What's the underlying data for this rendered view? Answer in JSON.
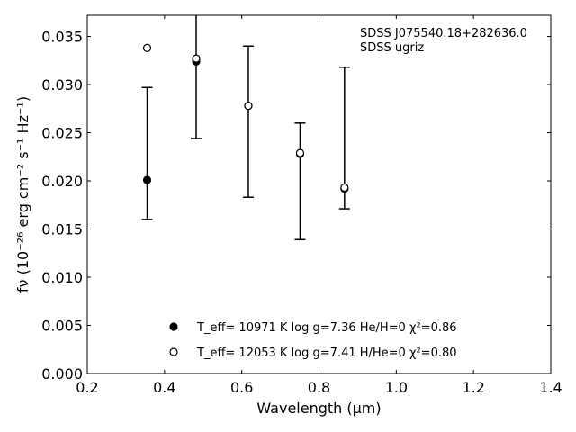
{
  "chart_data": {
    "type": "scatter",
    "xlabel": "Wavelength (μm)",
    "ylabel": "fν (10⁻²⁶ erg cm⁻² s⁻¹ Hz⁻¹)",
    "xlim": [
      0.2,
      1.4
    ],
    "ylim": [
      0.0,
      0.0372
    ],
    "x_ticks": [
      "0.2",
      "0.4",
      "0.6",
      "0.8",
      "1.0",
      "1.2",
      "1.4"
    ],
    "y_ticks": [
      "0.000",
      "0.005",
      "0.010",
      "0.015",
      "0.020",
      "0.025",
      "0.030",
      "0.035"
    ],
    "annotation": [
      "SDSS J075540.18+282636.0",
      "SDSS ugriz"
    ],
    "observed": {
      "x": [
        0.355,
        0.482,
        0.617,
        0.751,
        0.866
      ],
      "y": [
        0.0201,
        0.0325,
        0.0278,
        0.0229,
        0.0193
      ],
      "err_low": [
        0.016,
        0.0244,
        0.0183,
        0.0139,
        0.0171
      ],
      "err_high": [
        0.0297,
        0.0372,
        0.034,
        0.026,
        0.0318
      ]
    },
    "series": [
      {
        "marker": "filled",
        "legend": "T_eff= 10971 K  log g=7.36  He/H=0  χ²=0.86",
        "x": [
          0.355,
          0.482,
          0.617,
          0.751,
          0.866
        ],
        "y": [
          0.0201,
          0.0324,
          0.0278,
          0.0228,
          0.0192
        ]
      },
      {
        "marker": "open",
        "legend": "T_eff= 12053 K  log g=7.41  H/He=0  χ²=0.80",
        "x": [
          0.355,
          0.482,
          0.617,
          0.751,
          0.866
        ],
        "y": [
          0.0338,
          0.0327,
          0.0278,
          0.0229,
          0.0193
        ]
      }
    ],
    "legend_position": "bottom-center",
    "grid": false
  }
}
